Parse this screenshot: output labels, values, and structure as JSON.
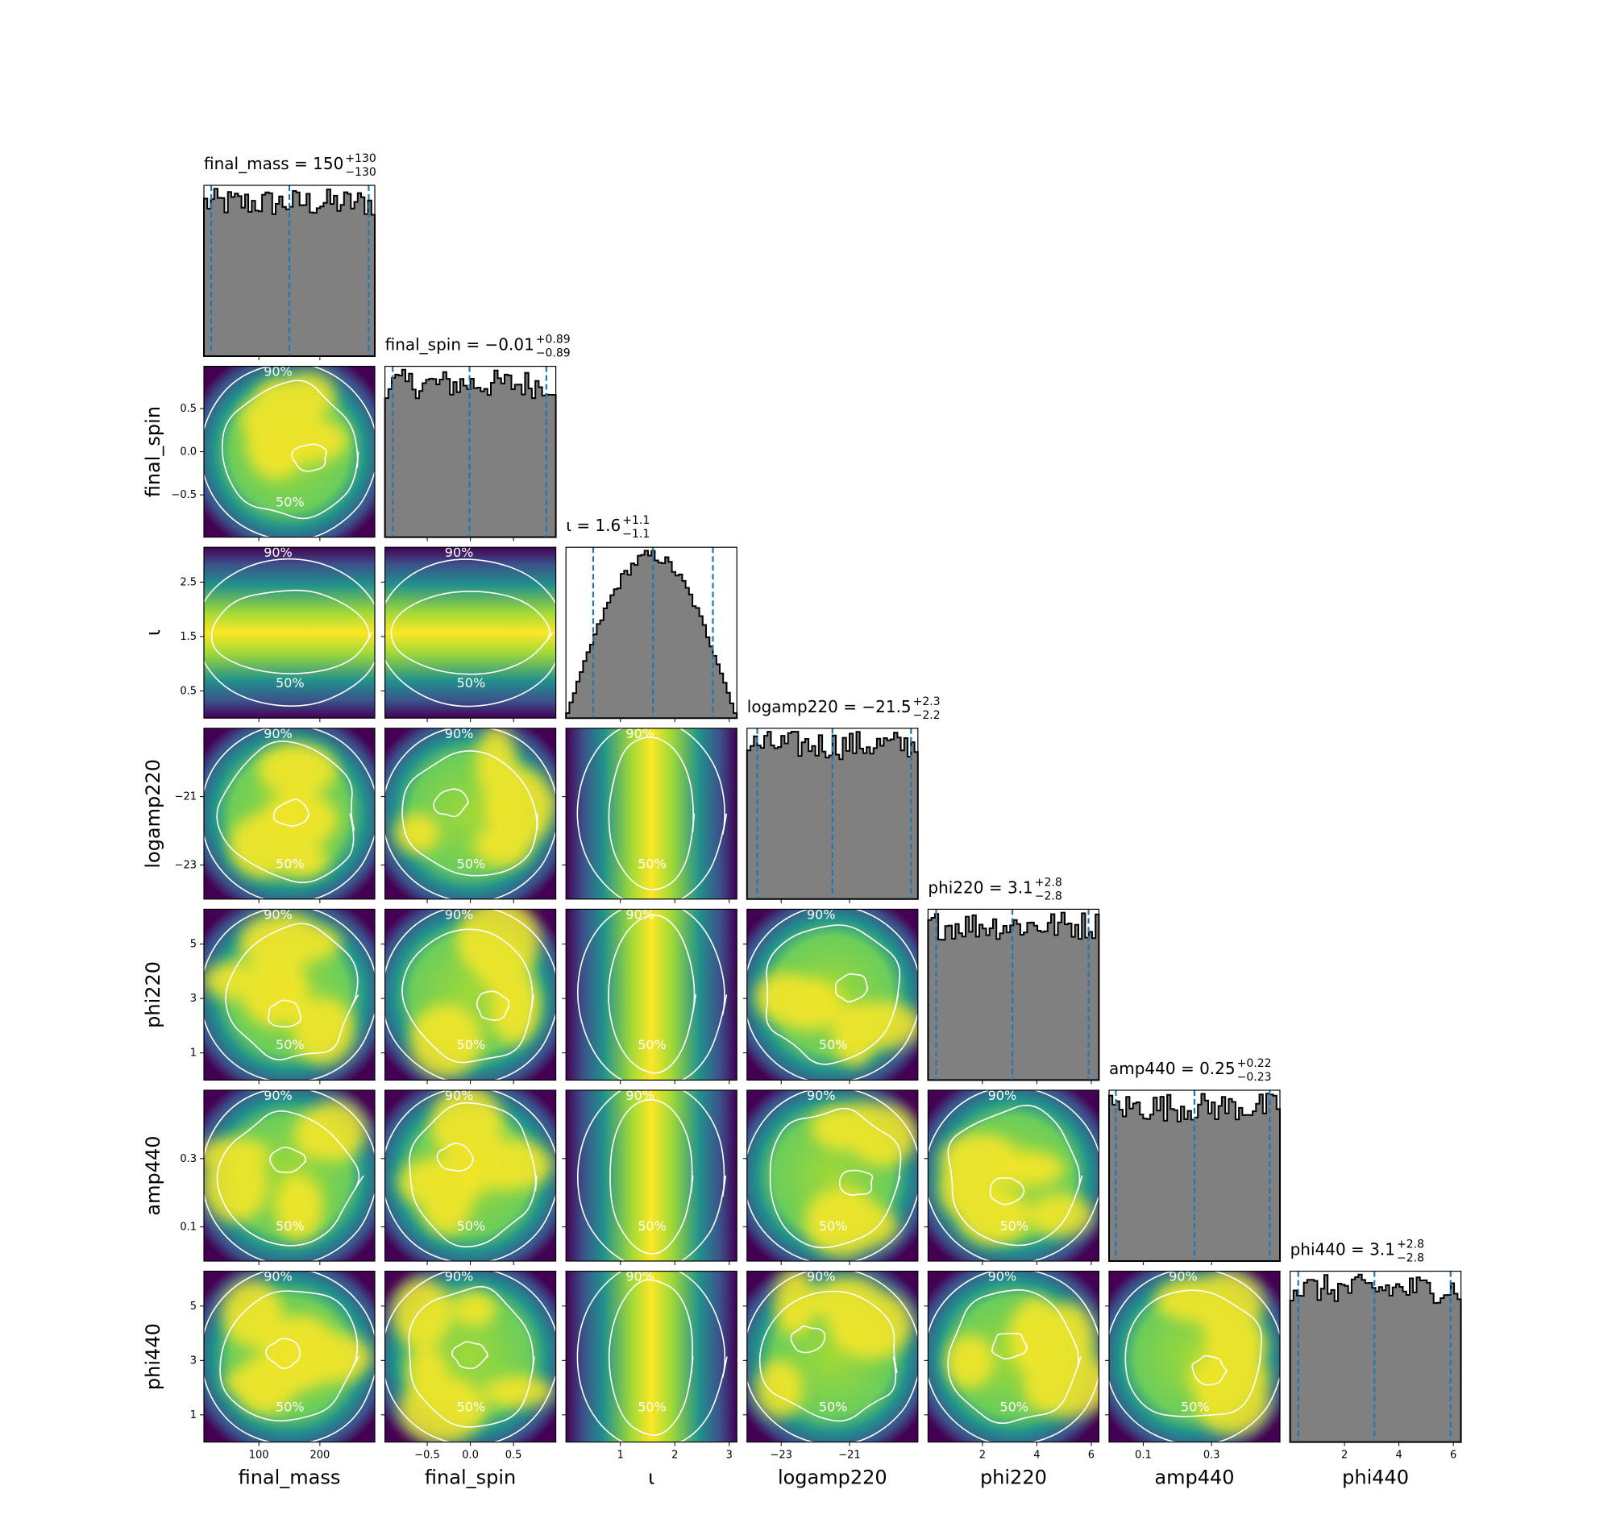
{
  "chart_data": {
    "type": "corner",
    "parameters": [
      "final_mass",
      "final_spin",
      "ι",
      "logamp220",
      "phi220",
      "amp440",
      "phi440"
    ],
    "summaries": [
      {
        "name": "final_mass",
        "label": "final_mass = 150",
        "median": "150",
        "plus": "+130",
        "minus": "−130"
      },
      {
        "name": "final_spin",
        "label": "final_spin = −0.01",
        "median": "−0.01",
        "plus": "+0.89",
        "minus": "−0.89"
      },
      {
        "name": "ι",
        "label": "ι = 1.6",
        "median": "1.6",
        "plus": "+1.1",
        "minus": "−1.1"
      },
      {
        "name": "logamp220",
        "label": "logamp220 = −21.5",
        "median": "−21.5",
        "plus": "+2.3",
        "minus": "−2.2"
      },
      {
        "name": "phi220",
        "label": "phi220 = 3.1",
        "median": "3.1",
        "plus": "+2.8",
        "minus": "−2.8"
      },
      {
        "name": "amp440",
        "label": "amp440 = 0.25",
        "median": "0.25",
        "plus": "+0.22",
        "minus": "−0.23"
      },
      {
        "name": "phi440",
        "label": "phi440 = 3.1",
        "median": "3.1",
        "plus": "+2.8",
        "minus": "−2.8"
      }
    ],
    "ranges": [
      [
        10,
        290
      ],
      [
        -0.99,
        0.99
      ],
      [
        0.0,
        3.14
      ],
      [
        -24,
        -19
      ],
      [
        0.0,
        6.28
      ],
      [
        0.0,
        0.5
      ],
      [
        0.0,
        6.28
      ]
    ],
    "ticks": [
      {
        "values": [
          100,
          200
        ],
        "labels": [
          "100",
          "200"
        ]
      },
      {
        "values": [
          -0.5,
          0.0,
          0.5
        ],
        "labels": [
          "−0.5",
          "0.0",
          "0.5"
        ]
      },
      {
        "values": [
          1,
          2,
          3
        ],
        "labels": [
          "1",
          "2",
          "3"
        ],
        "y_values": [
          0.5,
          1.5,
          2.5
        ],
        "y_labels": [
          "0.5",
          "1.5",
          "2.5"
        ]
      },
      {
        "values": [
          -23,
          -21
        ],
        "labels": [
          "−23",
          "−21"
        ]
      },
      {
        "values": [
          2,
          4,
          6
        ],
        "labels": [
          "2",
          "4",
          "6"
        ],
        "y_values": [
          1,
          3,
          5
        ],
        "y_labels": [
          "1",
          "3",
          "5"
        ]
      },
      {
        "values": [
          0.1,
          0.3
        ],
        "labels": [
          "0.1",
          "0.3"
        ]
      },
      {
        "values": [
          2,
          4,
          6
        ],
        "labels": [
          "2",
          "4",
          "6"
        ],
        "y_values": [
          1,
          3,
          5
        ],
        "y_labels": [
          "1",
          "3",
          "5"
        ]
      }
    ],
    "credible_intervals": [
      [
        22,
        150,
        280
      ],
      [
        -0.9,
        -0.01,
        0.88
      ],
      [
        0.5,
        1.6,
        2.7
      ],
      [
        -23.7,
        -21.5,
        -19.2
      ],
      [
        0.3,
        3.1,
        5.9
      ],
      [
        0.02,
        0.25,
        0.47
      ],
      [
        0.3,
        3.1,
        5.9
      ]
    ],
    "histogram_shapes": [
      "flat",
      "flat",
      "peaked",
      "flat",
      "flat",
      "flat",
      "flat"
    ],
    "contour_levels": [
      "50%",
      "90%"
    ],
    "colormap": "viridis",
    "colors": {
      "histogram_fill": "#808080",
      "histogram_edge": "#000000",
      "quantile_line": "#1f77b4",
      "contour_line": "#ffffff",
      "density_high": "#fde725",
      "density_mid": "#9fd938",
      "density_low": "#21918c",
      "density_edge": "#3b528b",
      "density_min": "#440154"
    }
  }
}
